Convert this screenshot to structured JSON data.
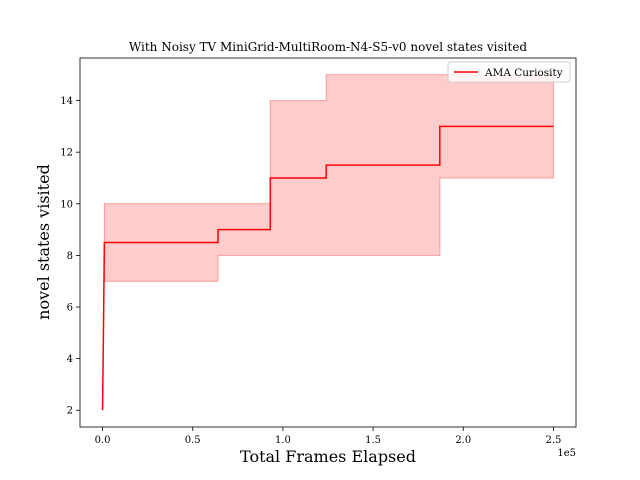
{
  "chart_data": {
    "type": "line",
    "title": "With Noisy TV MiniGrid-MultiRoom-N4-S5-v0 novel states visited",
    "xlabel": "Total Frames Elapsed",
    "ylabel": "novel states visited",
    "x_offset_label": "1e5",
    "xlim": [
      -12500,
      262500
    ],
    "ylim": [
      1.35,
      15.65
    ],
    "xticks": [
      0,
      50000,
      100000,
      150000,
      200000,
      250000
    ],
    "xtick_labels": [
      "0.0",
      "0.5",
      "1.0",
      "1.5",
      "2.0",
      "2.5"
    ],
    "yticks": [
      2,
      4,
      6,
      8,
      10,
      12,
      14
    ],
    "ytick_labels": [
      "2",
      "4",
      "6",
      "8",
      "10",
      "12",
      "14"
    ],
    "legend_position": "top-right",
    "grid": false,
    "series": [
      {
        "name": "AMA Curiosity",
        "color": "#ff0000",
        "band_color": "#ff9999",
        "line": [
          {
            "x": 0,
            "y": 2
          },
          {
            "x": 500,
            "y": 5
          },
          {
            "x": 1000,
            "y": 8.5
          },
          {
            "x": 64000,
            "y": 8.5
          },
          {
            "x": 64000,
            "y": 9
          },
          {
            "x": 93000,
            "y": 9
          },
          {
            "x": 93000,
            "y": 11
          },
          {
            "x": 124000,
            "y": 11
          },
          {
            "x": 124000,
            "y": 11.5
          },
          {
            "x": 187000,
            "y": 11.5
          },
          {
            "x": 187000,
            "y": 13
          },
          {
            "x": 250000,
            "y": 13
          }
        ],
        "band": [
          {
            "x": 1000,
            "low": 7,
            "high": 10
          },
          {
            "x": 64000,
            "low": 7,
            "high": 10
          },
          {
            "x": 64000,
            "low": 8,
            "high": 10
          },
          {
            "x": 93000,
            "low": 8,
            "high": 10
          },
          {
            "x": 93000,
            "low": 8,
            "high": 14
          },
          {
            "x": 124000,
            "low": 8,
            "high": 14
          },
          {
            "x": 124000,
            "low": 8,
            "high": 15
          },
          {
            "x": 187000,
            "low": 8,
            "high": 15
          },
          {
            "x": 187000,
            "low": 11,
            "high": 15
          },
          {
            "x": 250000,
            "low": 11,
            "high": 15
          }
        ]
      }
    ]
  }
}
